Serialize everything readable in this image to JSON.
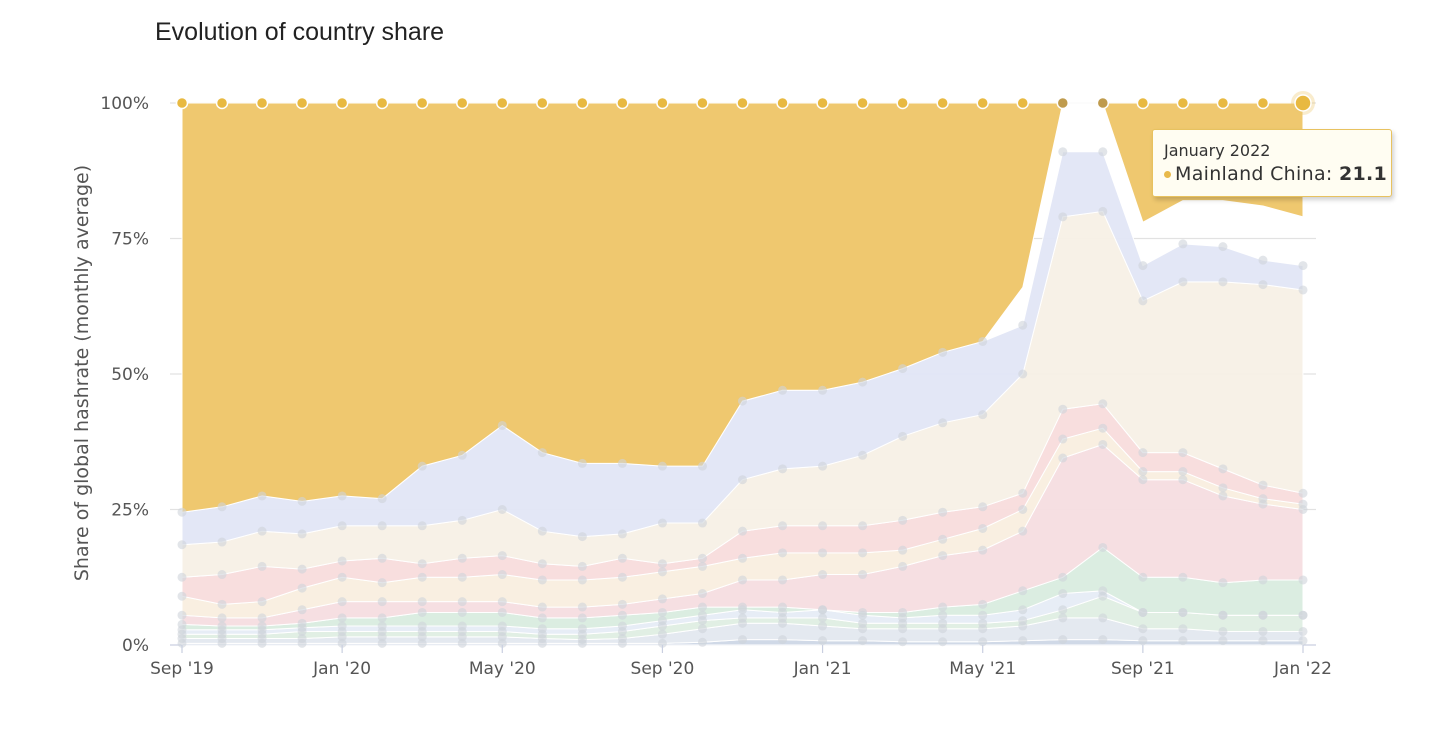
{
  "chart_data": {
    "type": "area",
    "stacked": true,
    "title": "Evolution of country share",
    "xlabel": "",
    "ylabel": "Share of global hashrate (monthly average)",
    "ylim": [
      0,
      100
    ],
    "yticks": [
      "0%",
      "25%",
      "50%",
      "75%",
      "100%"
    ],
    "ytick_values": [
      0,
      25,
      50,
      75,
      100
    ],
    "xticks": [
      "Sep '19",
      "Jan '20",
      "May '20",
      "Sep '20",
      "Jan '21",
      "May '21",
      "Sep '21",
      "Jan '22"
    ],
    "grid": true,
    "months": [
      "2019-09",
      "2019-10",
      "2019-11",
      "2019-12",
      "2020-01",
      "2020-02",
      "2020-03",
      "2020-04",
      "2020-05",
      "2020-06",
      "2020-07",
      "2020-08",
      "2020-09",
      "2020-10",
      "2020-11",
      "2020-12",
      "2021-01",
      "2021-02",
      "2021-03",
      "2021-04",
      "2021-05",
      "2021-06",
      "2021-07",
      "2021-08",
      "2021-09",
      "2021-10",
      "2021-11",
      "2021-12",
      "2022-01"
    ],
    "series_colors": [
      "#ced7e6",
      "#e3e8ef",
      "#dfeee3",
      "#e6ecf6",
      "#d9ecdf",
      "#f6dde0",
      "#f9eedf",
      "#f8dcdc",
      "#f7f0e6",
      "#e1e6f5",
      "#efc86f"
    ],
    "cumulative_tops": [
      [
        0.3,
        0.3,
        0.3,
        0.3,
        0.3,
        0.3,
        0.3,
        0.3,
        0.3,
        0.3,
        0.3,
        0.3,
        0.3,
        0.5,
        1.0,
        1.0,
        0.8,
        0.8,
        0.6,
        0.6,
        0.6,
        0.8,
        1.0,
        1.0,
        0.8,
        0.8,
        0.8,
        0.8,
        0.8
      ],
      [
        1.2,
        1.2,
        1.2,
        1.2,
        1.5,
        1.5,
        1.5,
        1.5,
        1.5,
        1.2,
        1.0,
        1.2,
        2.0,
        3.0,
        4.0,
        4.0,
        3.5,
        3.0,
        3.0,
        3.0,
        3.0,
        3.5,
        5.0,
        5.0,
        3.0,
        3.0,
        2.5,
        2.5,
        2.5
      ],
      [
        2.0,
        2.0,
        2.0,
        2.5,
        2.5,
        2.5,
        2.5,
        2.5,
        2.5,
        2.0,
        2.0,
        2.5,
        3.5,
        4.5,
        5.0,
        5.0,
        5.0,
        4.0,
        4.0,
        4.0,
        4.0,
        4.5,
        6.5,
        9.0,
        6.0,
        6.0,
        5.5,
        5.5,
        5.5
      ],
      [
        2.8,
        2.8,
        2.8,
        3.2,
        3.5,
        3.5,
        3.5,
        3.5,
        3.5,
        3.0,
        3.0,
        3.5,
        4.5,
        5.5,
        6.5,
        6.0,
        6.5,
        5.5,
        5.0,
        5.5,
        5.5,
        6.5,
        9.5,
        10.0,
        6.0,
        6.0,
        5.5,
        5.5,
        5.5
      ],
      [
        3.8,
        3.5,
        3.5,
        4.0,
        5.0,
        5.0,
        6.0,
        6.0,
        6.0,
        5.0,
        5.0,
        5.5,
        6.0,
        7.0,
        7.0,
        7.0,
        6.5,
        6.0,
        6.0,
        7.0,
        7.5,
        10.0,
        12.5,
        18.0,
        12.5,
        12.5,
        11.5,
        12.0,
        12.0
      ],
      [
        5.5,
        5.0,
        5.0,
        6.5,
        8.0,
        8.0,
        8.0,
        8.0,
        8.0,
        7.0,
        7.0,
        7.5,
        8.5,
        9.5,
        12.0,
        12.0,
        13.0,
        13.0,
        14.5,
        16.5,
        17.5,
        21.0,
        34.5,
        37.0,
        30.5,
        30.5,
        27.5,
        26.0,
        25.0
      ],
      [
        9.0,
        7.5,
        8.0,
        10.5,
        12.5,
        11.5,
        12.5,
        12.5,
        13.0,
        12.0,
        12.0,
        12.5,
        13.5,
        14.5,
        16.0,
        17.0,
        17.0,
        17.0,
        17.5,
        19.5,
        21.5,
        25.0,
        38.0,
        40.0,
        32.0,
        32.0,
        29.0,
        27.0,
        26.0
      ],
      [
        12.5,
        13.0,
        14.5,
        14.0,
        15.5,
        16.0,
        15.0,
        16.0,
        16.5,
        15.0,
        14.5,
        16.0,
        15.0,
        16.0,
        21.0,
        22.0,
        22.0,
        22.0,
        23.0,
        24.5,
        25.5,
        28.0,
        43.5,
        44.5,
        35.5,
        35.5,
        32.5,
        29.5,
        28.0
      ],
      [
        18.5,
        19.0,
        21.0,
        20.5,
        22.0,
        22.0,
        22.0,
        23.0,
        25.0,
        21.0,
        20.0,
        20.5,
        22.5,
        22.5,
        30.5,
        32.5,
        33.0,
        35.0,
        38.5,
        41.0,
        42.5,
        50.0,
        79.0,
        80.0,
        63.5,
        67.0,
        67.0,
        66.5,
        65.5
      ],
      [
        24.5,
        25.5,
        27.5,
        26.5,
        27.5,
        27.0,
        33.0,
        35.0,
        40.5,
        35.5,
        33.5,
        33.5,
        33.0,
        33.0,
        45.0,
        47.0,
        47.0,
        48.5,
        51.0,
        54.0,
        56.0,
        59.0,
        91.0,
        91.0,
        70.0,
        74.0,
        73.5,
        71.0,
        70.0
      ],
      [
        100,
        100,
        100,
        100,
        100,
        100,
        100,
        100,
        100,
        100,
        100,
        100,
        100,
        100,
        100,
        100,
        100,
        100,
        100,
        100,
        100,
        100,
        100,
        100,
        100,
        100,
        100,
        100,
        100
      ]
    ],
    "upper_envelope": [
      24.5,
      25.5,
      27.5,
      26.5,
      27.5,
      27.0,
      33.0,
      35.0,
      40.5,
      35.5,
      33.5,
      33.5,
      33.0,
      33.0,
      45.0,
      47.0,
      47.0,
      48.5,
      51.0,
      54.0,
      56.0,
      66.0,
      100,
      100,
      78.0,
      82.0,
      82.0,
      81.0,
      79.0
    ],
    "tooltip": {
      "date": "January 2022",
      "series": "Mainland China",
      "value": "21.1",
      "text": "Mainland China: "
    }
  }
}
